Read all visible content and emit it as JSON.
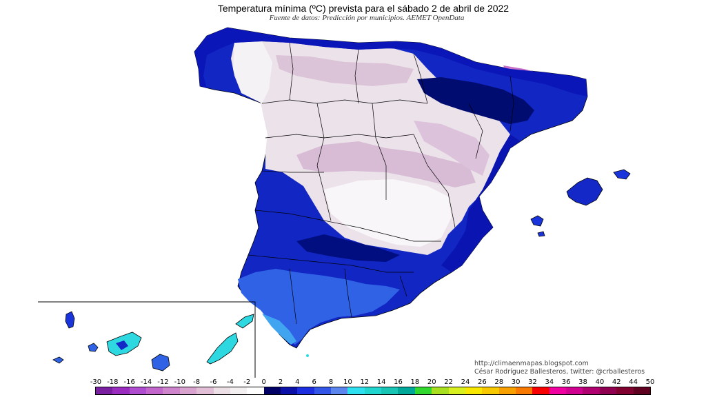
{
  "header": {
    "title": "Temperatura mínima (ºC) prevista para el sábado 2 de abril de 2022",
    "subtitle": "Fuente de datos: Predicción por municipios. AEMET OpenData"
  },
  "credits": {
    "url": "http://climaenmapas.blogspot.com",
    "author": "César Rodríguez Ballesteros, twitter: @crballesteros"
  },
  "legend": {
    "labels": [
      "-30",
      "-18",
      "-16",
      "-14",
      "-12",
      "-10",
      "-8",
      "-6",
      "-4",
      "-2",
      "0",
      "2",
      "4",
      "6",
      "8",
      "10",
      "12",
      "14",
      "16",
      "18",
      "20",
      "22",
      "24",
      "26",
      "28",
      "30",
      "32",
      "34",
      "36",
      "38",
      "40",
      "42",
      "44",
      "50"
    ],
    "colors": [
      "#7a1fa2",
      "#9a2cc0",
      "#b04ccf",
      "#c266cc",
      "#cf85cc",
      "#d9a3cf",
      "#e2bfd6",
      "#ece0e6",
      "#f4f0f2",
      "#ffffff",
      "#000066",
      "#0a10a8",
      "#1c2ee0",
      "#3456e8",
      "#5c86ee",
      "#2ee0f0",
      "#22d6d0",
      "#18c4b4",
      "#00a89a",
      "#30d830",
      "#a8e020",
      "#d8f020",
      "#f8e800",
      "#f8c800",
      "#f8a000",
      "#f87800",
      "#f80000",
      "#f000a0",
      "#d00090",
      "#b00070",
      "#900050",
      "#800030",
      "#600020"
    ]
  },
  "map": {
    "regions": [
      "Península",
      "Baleares",
      "Canarias"
    ],
    "colors": {
      "cold_white": "#f4f2f4",
      "light_lilac": "#e6d6e4",
      "lilac": "#d8bcd8",
      "magenta": "#c86cc8",
      "navy": "#000c72",
      "deep_blue": "#0a14b8",
      "blue": "#1a34dc",
      "sky_blue": "#3c78ec",
      "cyan": "#2ed8e0",
      "border": "#000000"
    }
  }
}
